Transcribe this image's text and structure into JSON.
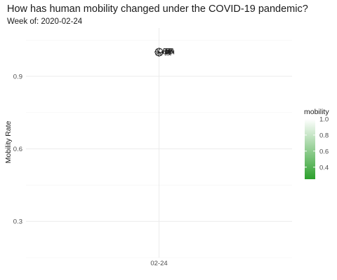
{
  "header": {
    "title": "How has human mobility changed under the COVID-19 pandemic?",
    "subtitle": "Week of: 2020-02-24"
  },
  "chart_data": {
    "type": "scatter",
    "title": "How has human mobility changed under the COVID-19 pandemic?",
    "subtitle": "Week of: 2020-02-24",
    "xlabel": "",
    "ylabel": "Mobility Rate",
    "x_categories": [
      "02-24"
    ],
    "ylim": [
      0.15,
      1.1
    ],
    "y_ticks": [
      0.3,
      0.6,
      0.9
    ],
    "y_tick_labels": [
      "0.3",
      "0.6",
      "0.9"
    ],
    "grid": true,
    "points": [
      {
        "x": "02-24",
        "y": 1.0,
        "label": "CHN",
        "mobility": 1.0
      },
      {
        "x": "02-24",
        "y": 1.0,
        "label": "USA",
        "mobility": 1.0
      },
      {
        "x": "02-24",
        "y": 1.0,
        "label": "ITA",
        "mobility": 1.0
      },
      {
        "x": "02-24",
        "y": 1.0,
        "label": "KOR",
        "mobility": 1.0
      },
      {
        "x": "02-24",
        "y": 1.0,
        "label": "ESP",
        "mobility": 1.0
      },
      {
        "x": "02-24",
        "y": 1.0,
        "label": "GBR",
        "mobility": 1.0
      },
      {
        "x": "02-24",
        "y": 1.0,
        "label": "DEU",
        "mobility": 1.0
      },
      {
        "x": "02-24",
        "y": 1.0,
        "label": "FRA",
        "mobility": 1.0
      }
    ],
    "legend": {
      "title": "mobility",
      "position": "right",
      "range": [
        0.25,
        1.0
      ],
      "ticks": [
        0.4,
        0.6,
        0.8,
        1.0
      ],
      "tick_labels": [
        "0.4",
        "0.6",
        "0.8",
        "1.0"
      ],
      "color_low": "#2ca02c",
      "color_high": "#ffffff"
    },
    "colors": {
      "grid_major": "#ebebeb",
      "grid_minor": "#f5f5f5",
      "point_outline": "#1a1a1a"
    }
  }
}
